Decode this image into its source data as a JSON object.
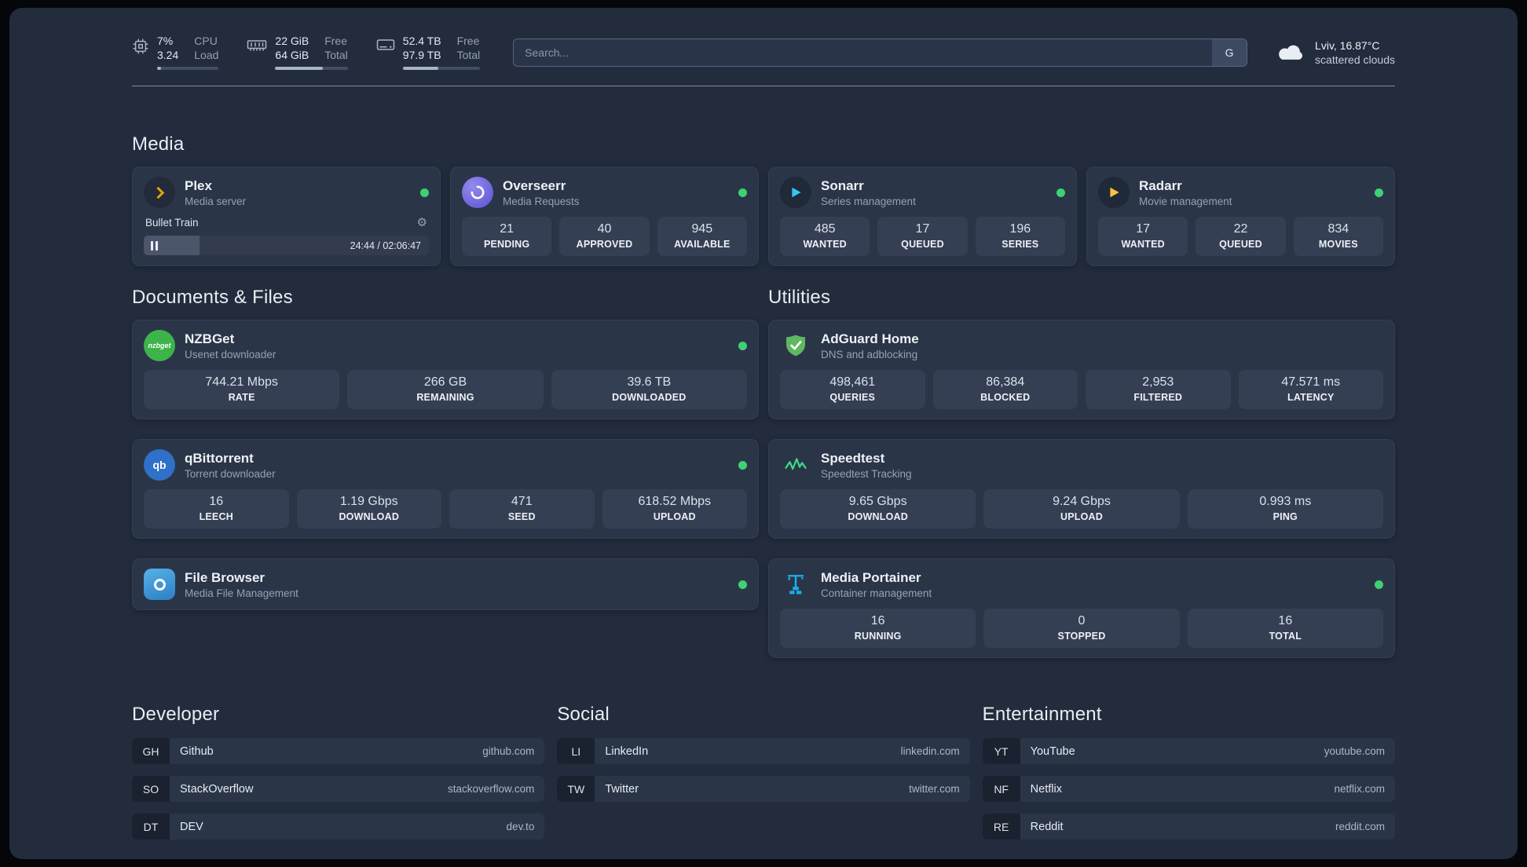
{
  "colors": {
    "status-green": "#3ed173",
    "plex-amber": "#e5a00d",
    "overseerr-purple": "#5a50cf",
    "sonarr-blue": "#35c5f4",
    "radarr-amber": "#f6c53b",
    "nzbget-green": "#3cb44a",
    "qbittorrent-blue": "#2f70c9",
    "adguard-green": "#5fb760",
    "speedtest-green": "#3ddc84",
    "portainer-blue": "#18b0e8"
  },
  "topbar": {
    "cpu": {
      "value1": "7%",
      "value2": "3.24",
      "label1": "CPU",
      "label2": "Load",
      "bar_percent": 7
    },
    "memory": {
      "value1": "22 GiB",
      "value2": "64 GiB",
      "label1": "Free",
      "label2": "Total",
      "bar_percent": 66
    },
    "disk": {
      "value1": "52.4 TB",
      "value2": "97.9 TB",
      "label1": "Free",
      "label2": "Total",
      "bar_percent": 46
    },
    "search": {
      "placeholder": "Search...",
      "provider": "G"
    },
    "weather": {
      "location": "Lviv, 16.87°C",
      "condition": "scattered clouds"
    }
  },
  "sections": {
    "media": {
      "title": "Media",
      "cards": [
        {
          "name": "Plex",
          "subtitle": "Media server",
          "icon": "plex-icon",
          "online": true,
          "player": {
            "track": "Bullet Train",
            "time": "24:44 / 02:06:47",
            "progress_percent": 19.5
          }
        },
        {
          "name": "Overseerr",
          "subtitle": "Media Requests",
          "icon": "overseerr-icon",
          "online": true,
          "stats": [
            {
              "value": "21",
              "label": "PENDING"
            },
            {
              "value": "40",
              "label": "APPROVED"
            },
            {
              "value": "945",
              "label": "AVAILABLE"
            }
          ]
        },
        {
          "name": "Sonarr",
          "subtitle": "Series management",
          "icon": "sonarr-icon",
          "online": true,
          "stats": [
            {
              "value": "485",
              "label": "WANTED"
            },
            {
              "value": "17",
              "label": "QUEUED"
            },
            {
              "value": "196",
              "label": "SERIES"
            }
          ]
        },
        {
          "name": "Radarr",
          "subtitle": "Movie management",
          "icon": "radarr-icon",
          "online": true,
          "stats": [
            {
              "value": "17",
              "label": "WANTED"
            },
            {
              "value": "22",
              "label": "QUEUED"
            },
            {
              "value": "834",
              "label": "MOVIES"
            }
          ]
        }
      ]
    },
    "documents": {
      "title": "Documents & Files",
      "cards": [
        {
          "name": "NZBGet",
          "subtitle": "Usenet downloader",
          "icon": "nzbget-icon",
          "online": true,
          "stats": [
            {
              "value": "744.21 Mbps",
              "label": "RATE"
            },
            {
              "value": "266 GB",
              "label": "REMAINING"
            },
            {
              "value": "39.6 TB",
              "label": "DOWNLOADED"
            }
          ]
        },
        {
          "name": "qBittorrent",
          "subtitle": "Torrent downloader",
          "icon": "qbittorrent-icon",
          "online": true,
          "stats": [
            {
              "value": "16",
              "label": "LEECH"
            },
            {
              "value": "1.19 Gbps",
              "label": "DOWNLOAD"
            },
            {
              "value": "471",
              "label": "SEED"
            },
            {
              "value": "618.52 Mbps",
              "label": "UPLOAD"
            }
          ]
        },
        {
          "name": "File Browser",
          "subtitle": "Media File Management",
          "icon": "filebrowser-icon",
          "online": true
        }
      ]
    },
    "utilities": {
      "title": "Utilities",
      "cards": [
        {
          "name": "AdGuard Home",
          "subtitle": "DNS and adblocking",
          "icon": "adguard-icon",
          "stats": [
            {
              "value": "498,461",
              "label": "QUERIES"
            },
            {
              "value": "86,384",
              "label": "BLOCKED"
            },
            {
              "value": "2,953",
              "label": "FILTERED"
            },
            {
              "value": "47.571 ms",
              "label": "LATENCY"
            }
          ]
        },
        {
          "name": "Speedtest",
          "subtitle": "Speedtest Tracking",
          "icon": "speedtest-icon",
          "stats": [
            {
              "value": "9.65 Gbps",
              "label": "DOWNLOAD"
            },
            {
              "value": "9.24 Gbps",
              "label": "UPLOAD"
            },
            {
              "value": "0.993 ms",
              "label": "PING"
            }
          ]
        },
        {
          "name": "Media Portainer",
          "subtitle": "Container management",
          "icon": "portainer-icon",
          "online": true,
          "stats": [
            {
              "value": "16",
              "label": "RUNNING"
            },
            {
              "value": "0",
              "label": "STOPPED"
            },
            {
              "value": "16",
              "label": "TOTAL"
            }
          ]
        }
      ]
    }
  },
  "bookmarks": {
    "groups": [
      {
        "title": "Developer",
        "items": [
          {
            "abbr": "GH",
            "name": "Github",
            "url": "github.com"
          },
          {
            "abbr": "SO",
            "name": "StackOverflow",
            "url": "stackoverflow.com"
          },
          {
            "abbr": "DT",
            "name": "DEV",
            "url": "dev.to"
          }
        ]
      },
      {
        "title": "Social",
        "items": [
          {
            "abbr": "LI",
            "name": "LinkedIn",
            "url": "linkedin.com"
          },
          {
            "abbr": "TW",
            "name": "Twitter",
            "url": "twitter.com"
          }
        ]
      },
      {
        "title": "Entertainment",
        "items": [
          {
            "abbr": "YT",
            "name": "YouTube",
            "url": "youtube.com"
          },
          {
            "abbr": "NF",
            "name": "Netflix",
            "url": "netflix.com"
          },
          {
            "abbr": "RE",
            "name": "Reddit",
            "url": "reddit.com"
          }
        ]
      }
    ]
  }
}
